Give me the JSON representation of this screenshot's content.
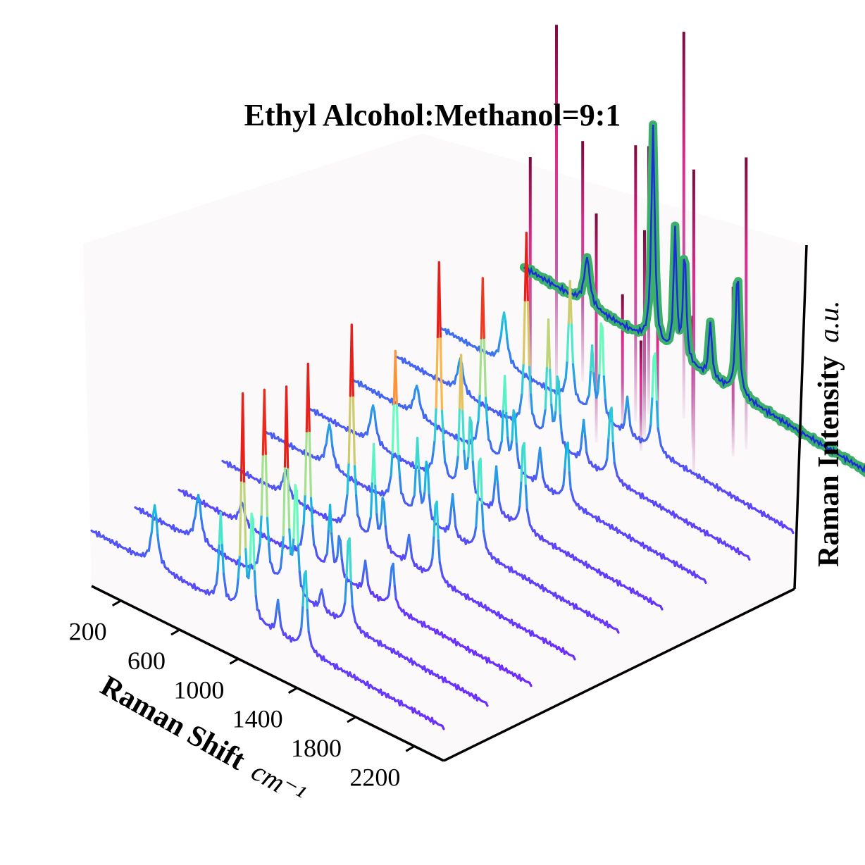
{
  "chart_data": {
    "type": "line",
    "projection": "3d",
    "title": "Ethyl Alcohol:Methanol=9:1",
    "xlabel": "Raman Shift",
    "xlabel_unit": "cm⁻¹",
    "zlabel": "Raman Intensity",
    "zlabel_unit": "a.u.",
    "xticks": [
      "200",
      "600",
      "1000",
      "1400",
      "1800",
      "2200"
    ],
    "xlim": [
      0,
      2400
    ],
    "grid": false,
    "colors": {
      "pane": "#fbf9fa",
      "axis": "#000000",
      "overlay_band": "#3caf6a",
      "overlay_mean": "#1a2fd4",
      "spectra_colormap": [
        "#7a1dff",
        "#4466f0",
        "#19b8e0",
        "#66ffbf",
        "#ffb347",
        "#e8201a"
      ],
      "stems_colormap": [
        "#f6eef4",
        "#c060a8",
        "#e0288a",
        "#7a0a3c"
      ]
    },
    "peaks_cm": [
      430,
      880,
      1030,
      1095,
      1270,
      1455
    ],
    "series": [
      {
        "kind": "spectrum",
        "peak_heights": [
          0.28,
          0.4,
          1.0,
          0.52,
          0.16,
          0.4
        ],
        "baseline": 0.1
      },
      {
        "kind": "spectrum",
        "peak_heights": [
          0.22,
          0.86,
          0.92,
          0.55,
          0.1,
          0.45
        ],
        "baseline": 0.1
      },
      {
        "kind": "spectrum",
        "peak_heights": [
          0.1,
          0.9,
          0.3,
          0.2,
          0.15,
          0.22
        ],
        "baseline": 0.09
      },
      {
        "kind": "spectrum",
        "peak_heights": [
          0.12,
          0.95,
          0.45,
          0.25,
          0.14,
          0.4
        ],
        "baseline": 0.1
      },
      {
        "kind": "spectrum",
        "peak_heights": [
          0.2,
          0.7,
          0.35,
          0.3,
          0.2,
          0.48
        ],
        "baseline": 0.11
      },
      {
        "kind": "spectrum",
        "peak_heights": [
          0.18,
          1.0,
          0.62,
          0.4,
          0.22,
          0.44
        ],
        "baseline": 0.11
      },
      {
        "kind": "spectrum",
        "peak_heights": [
          0.14,
          0.8,
          0.4,
          0.3,
          0.18,
          0.3
        ],
        "baseline": 0.12
      },
      {
        "kind": "spectrum",
        "peak_heights": [
          0.16,
          0.9,
          0.55,
          0.35,
          0.2,
          0.36
        ],
        "baseline": 0.12
      },
      {
        "kind": "spectrum",
        "peak_heights": [
          0.24,
          0.55,
          0.3,
          0.5,
          0.18,
          0.5
        ],
        "baseline": 0.13
      },
      {
        "kind": "overlay",
        "peak_heights": [
          0.22,
          1.0,
          0.58,
          0.52,
          0.26,
          0.58
        ],
        "baseline": 0.16
      }
    ],
    "stems": [
      {
        "x_cm": 430,
        "height": 0.1
      },
      {
        "x_cm": 1455,
        "height": 0.58
      },
      {
        "x_cm": 880,
        "height": 0.36
      },
      {
        "x_cm": 1030,
        "height": 0.38
      },
      {
        "x_cm": 430,
        "height": 0.63
      },
      {
        "x_cm": 1455,
        "height": 0.76
      },
      {
        "x_cm": 880,
        "height": 0.6
      },
      {
        "x_cm": 1095,
        "height": 0.3
      },
      {
        "x_cm": 430,
        "height": 0.96
      },
      {
        "x_cm": 1270,
        "height": 0.36
      },
      {
        "x_cm": 880,
        "height": 0.7
      },
      {
        "x_cm": 1030,
        "height": 1.0
      },
      {
        "x_cm": 430,
        "height": 0.66
      },
      {
        "x_cm": 1455,
        "height": 0.8
      },
      {
        "x_cm": 1030,
        "height": 0.55
      },
      {
        "x_cm": 880,
        "height": 0.72
      },
      {
        "x_cm": 1455,
        "height": 0.45
      }
    ]
  }
}
